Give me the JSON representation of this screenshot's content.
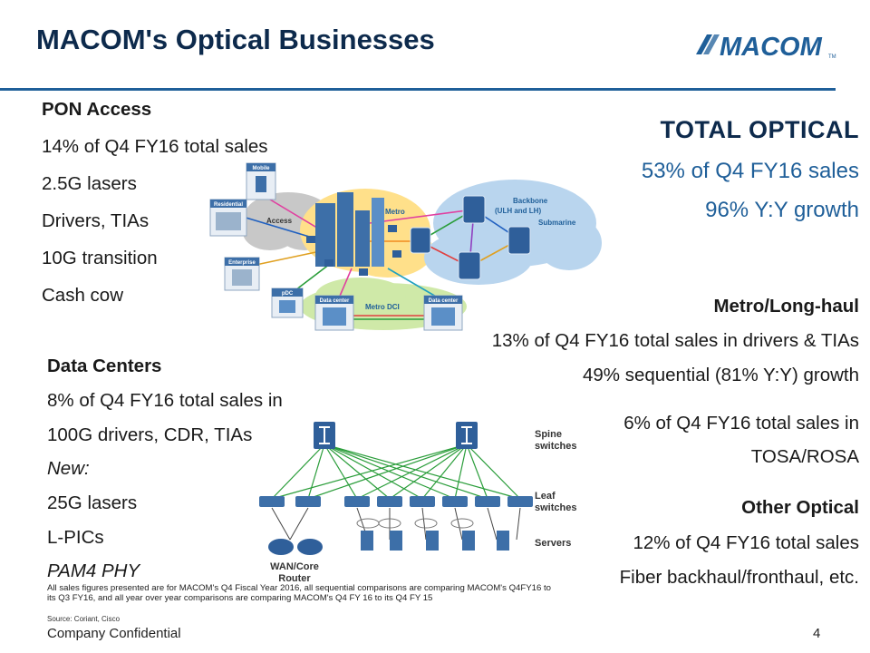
{
  "slide": {
    "title": "MACOM's Optical Businesses",
    "logo_text": "MACOM",
    "logo_tm": "TM",
    "page_number": "4",
    "footer": "Company Confidential"
  },
  "pon": {
    "heading": "PON Access",
    "lines": [
      "14% of Q4 FY16 total sales",
      "2.5G lasers",
      "Drivers, TIAs",
      "10G transition",
      "Cash cow"
    ]
  },
  "datacenters": {
    "heading": "Data Centers",
    "lines": [
      "8% of Q4 FY16 total sales in",
      "100G drivers, CDR, TIAs"
    ],
    "new_label": "New:",
    "new_lines": [
      "25G lasers",
      "L-PICs"
    ],
    "pam4": "PAM4 PHY"
  },
  "total_optical": {
    "heading": "TOTAL OPTICAL",
    "line1": "53% of Q4 FY16 sales",
    "line2": "96% Y:Y growth"
  },
  "metro": {
    "heading": "Metro/Long-haul",
    "line1": "13% of Q4 FY16 total sales in drivers & TIAs",
    "line2": "49% sequential (81% Y:Y) growth",
    "line3": "6% of Q4 FY16 total sales in",
    "line4": "TOSA/ROSA"
  },
  "other": {
    "heading": "Other Optical",
    "line1": "12% of Q4 FY16 total sales",
    "line2": "Fiber backhaul/fronthaul, etc."
  },
  "network_diagram": {
    "mobile": "Mobile",
    "residential": "Residential",
    "access": "Access",
    "enterprise": "Enterprise",
    "metro": "Metro",
    "backbone": "Backbone",
    "backbone_sub": "(ULH and LH)",
    "submarine": "Submarine",
    "pdc": "pDC",
    "data_center_1": "Data center",
    "data_center_2": "Data center",
    "metro_dci": "Metro DCI"
  },
  "dc_diagram": {
    "spine_1": "Spine",
    "spine_2": "switches",
    "leaf_1": "Leaf",
    "leaf_2": "switches",
    "servers": "Servers",
    "wan_1": "WAN/Core",
    "wan_2": "Router"
  },
  "footnote": "All sales figures presented are for MACOM's Q4 Fiscal Year 2016, all sequential comparisons are comparing MACOM's Q4FY16 to its Q3 FY16, and all year over year comparisons are comparing MACOM's Q4 FY 16 to its Q4 FY 15",
  "source": "Source:  Coriant, Cisco",
  "colors": {
    "title": "#0d2a4c",
    "rule": "#1f5f99",
    "accent_blue": "#1f5f99",
    "logo": "#1f5f99"
  }
}
